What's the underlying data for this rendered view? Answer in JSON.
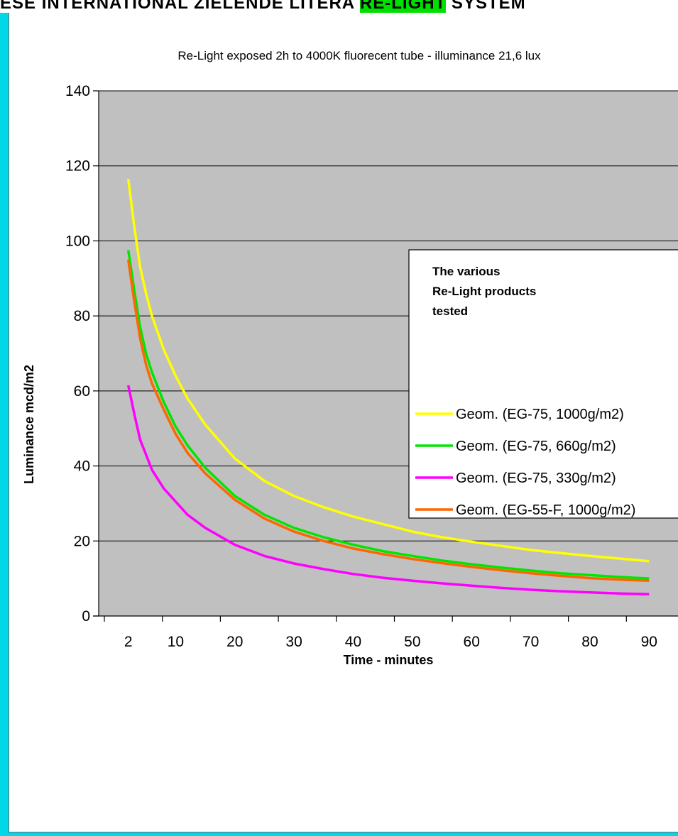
{
  "banner": {
    "text_before": "ESE INTERNATIONAL ZIELENDE LITERA",
    "text_highlight": "RE-LIGHT",
    "text_after": "SYSTEM"
  },
  "colors": {
    "page_frame": "#00d8e8",
    "plot_background": "#c0c0c0",
    "gridline": "#000000",
    "highlight": "#00e000"
  },
  "legend": {
    "heading_lines": [
      "The various",
      "Re-Light products",
      "tested"
    ],
    "placement": "right"
  },
  "chart_data": {
    "type": "line",
    "title": "Re-Light exposed 2h to 4000K fluorecent tube - illuminance 21,6 lux",
    "xlabel": "Time - minutes",
    "ylabel": "Luminance mcd/m2",
    "ylim": [
      0,
      140
    ],
    "yticks": [
      0,
      20,
      40,
      60,
      80,
      100,
      120,
      140
    ],
    "xticks": [
      2,
      10,
      20,
      30,
      40,
      50,
      60,
      70,
      80,
      90
    ],
    "xlim": [
      -3,
      95
    ],
    "grid": "horizontal",
    "x": [
      2,
      3,
      4,
      5,
      6,
      8,
      10,
      12,
      15,
      20,
      25,
      30,
      35,
      40,
      45,
      50,
      55,
      60,
      65,
      70,
      75,
      80,
      85,
      90
    ],
    "series": [
      {
        "name": "Geom. (EG-75, 1000g/m2)",
        "color": "#ffff00",
        "values": [
          116.5,
          104,
          93,
          86,
          80,
          71,
          64,
          58,
          51,
          42,
          36,
          32,
          29,
          26.5,
          24.5,
          22.5,
          21,
          19.8,
          18.7,
          17.6,
          16.8,
          16,
          15.3,
          14.6
        ]
      },
      {
        "name": "Geom. (EG-75, 660g/m2)",
        "color": "#00e600",
        "values": [
          97.5,
          87,
          77,
          70,
          65,
          57,
          50.5,
          45.5,
          39.5,
          32,
          27,
          23.5,
          21,
          19,
          17.3,
          16,
          14.8,
          13.8,
          12.9,
          12.1,
          11.4,
          10.9,
          10.4,
          10
        ]
      },
      {
        "name": "Geom. (EG-75, 330g/m2)",
        "color": "#ff00ff",
        "values": [
          61.5,
          54,
          47,
          43,
          39,
          34,
          30.5,
          27,
          23.5,
          19,
          16,
          14,
          12.5,
          11.2,
          10.2,
          9.4,
          8.7,
          8.1,
          7.5,
          7,
          6.6,
          6.3,
          6,
          5.8
        ]
      },
      {
        "name": "Geom. (EG-55-F, 1000g/m2)",
        "color": "#ff6600",
        "values": [
          95,
          84,
          74,
          67,
          62,
          55,
          48.5,
          43.5,
          38,
          31,
          26,
          22.5,
          20,
          18,
          16.5,
          15.2,
          14.1,
          13.1,
          12.2,
          11.4,
          10.7,
          10.1,
          9.7,
          9.4
        ]
      }
    ]
  }
}
